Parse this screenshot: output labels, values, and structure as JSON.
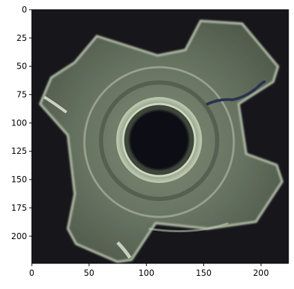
{
  "image": {
    "subject": "tee-nut",
    "colors": {
      "background": "#17161b",
      "metal_light": "#a7b39c",
      "metal_mid": "#6c7a64",
      "metal_dark": "#3c4538",
      "hole": "#0e0f12",
      "scratch": "#2a3350"
    }
  },
  "axes": {
    "x_ticks": [
      {
        "value": 0,
        "label": "0"
      },
      {
        "value": 50,
        "label": "50"
      },
      {
        "value": 100,
        "label": "100"
      },
      {
        "value": 150,
        "label": "150"
      },
      {
        "value": 200,
        "label": "200"
      }
    ],
    "y_ticks": [
      {
        "value": 0,
        "label": "0"
      },
      {
        "value": 25,
        "label": "25"
      },
      {
        "value": 50,
        "label": "50"
      },
      {
        "value": 75,
        "label": "75"
      },
      {
        "value": 100,
        "label": "100"
      },
      {
        "value": 125,
        "label": "125"
      },
      {
        "value": 150,
        "label": "150"
      },
      {
        "value": 175,
        "label": "175"
      },
      {
        "value": 200,
        "label": "200"
      }
    ],
    "xlim": [
      0,
      224
    ],
    "ylim": [
      0,
      224
    ]
  }
}
